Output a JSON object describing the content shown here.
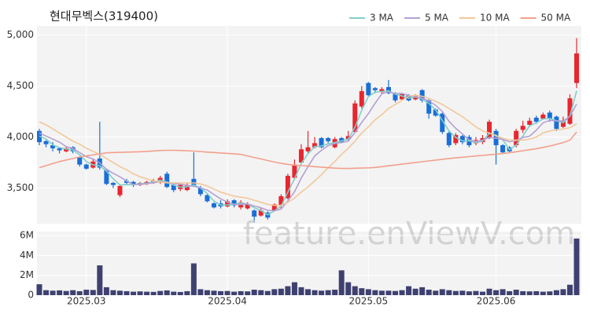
{
  "chart_data": [
    {
      "type": "candlestick",
      "title": "현대무벡스(319400)",
      "watermark": "feature.enViewV.com",
      "up_color": "#e8262f",
      "down_color": "#1a6fd6",
      "grid": true,
      "legend": "top-right",
      "ylim": [
        3150,
        5090
      ],
      "yticks": [
        {
          "value": 3500,
          "label": "3,500"
        },
        {
          "value": 4000,
          "label": "4,000"
        },
        {
          "value": 4500,
          "label": "4,500"
        },
        {
          "value": 5000,
          "label": "5,000"
        }
      ],
      "open": [
        4060,
        3960,
        3920,
        3890,
        3860,
        3900,
        3800,
        3730,
        3700,
        3790,
        3680,
        3550,
        3430,
        3570,
        3560,
        3530,
        3540,
        3550,
        3560,
        3640,
        3530,
        3490,
        3480,
        3590,
        3500,
        3430,
        3350,
        3350,
        3320,
        3380,
        3310,
        3300,
        3280,
        3230,
        3260,
        3280,
        3330,
        3400,
        3600,
        3750,
        3860,
        3900,
        3990,
        3990,
        3900,
        3990,
        3980,
        4050,
        4300,
        4530,
        4480,
        4440,
        4490,
        4430,
        4370,
        4410,
        4370,
        4460,
        4360,
        4270,
        4230,
        4040,
        3940,
        4010,
        4000,
        3940,
        3950,
        3990,
        4060,
        3920,
        3900,
        3920,
        4070,
        4120,
        4190,
        4180,
        4240,
        4200,
        4100,
        4130,
        4530
      ],
      "high": [
        4080,
        3970,
        3950,
        3900,
        3910,
        3910,
        3810,
        3740,
        3780,
        4150,
        3690,
        3560,
        3530,
        3590,
        3570,
        3560,
        3570,
        3590,
        3620,
        3660,
        3540,
        3540,
        3550,
        3850,
        3520,
        3440,
        3360,
        3380,
        3390,
        3390,
        3380,
        3360,
        3290,
        3300,
        3270,
        3350,
        3440,
        3640,
        3780,
        3930,
        4060,
        4000,
        4000,
        4000,
        4000,
        4000,
        4060,
        4360,
        4500,
        4540,
        4490,
        4490,
        4560,
        4440,
        4430,
        4420,
        4420,
        4470,
        4370,
        4280,
        4240,
        4060,
        4040,
        4020,
        4020,
        4000,
        4020,
        4170,
        4080,
        3930,
        3910,
        4080,
        4160,
        4190,
        4210,
        4240,
        4260,
        4210,
        4200,
        4420,
        4970
      ],
      "low": [
        3920,
        3900,
        3860,
        3840,
        3850,
        3840,
        3710,
        3680,
        3690,
        3680,
        3530,
        3500,
        3410,
        3530,
        3510,
        3520,
        3530,
        3540,
        3540,
        3500,
        3460,
        3470,
        3470,
        3520,
        3420,
        3360,
        3300,
        3300,
        3310,
        3310,
        3290,
        3290,
        3160,
        3220,
        3190,
        3270,
        3300,
        3390,
        3580,
        3740,
        3840,
        3890,
        3890,
        3940,
        3890,
        3940,
        3960,
        4040,
        4280,
        4400,
        4430,
        4420,
        4420,
        4340,
        4360,
        4350,
        4360,
        4340,
        4180,
        4200,
        4030,
        3900,
        3920,
        3930,
        3900,
        3920,
        3930,
        3980,
        3730,
        3840,
        3850,
        3900,
        4040,
        4100,
        4130,
        4170,
        4150,
        4060,
        4090,
        4120,
        4480
      ],
      "close": [
        3950,
        3930,
        3890,
        3870,
        3890,
        3860,
        3730,
        3690,
        3760,
        3700,
        3540,
        3530,
        3520,
        3550,
        3530,
        3550,
        3560,
        3570,
        3600,
        3510,
        3480,
        3530,
        3530,
        3530,
        3440,
        3370,
        3310,
        3320,
        3370,
        3330,
        3360,
        3340,
        3220,
        3280,
        3210,
        3340,
        3420,
        3620,
        3730,
        3880,
        3900,
        3940,
        3900,
        3960,
        3980,
        3950,
        4010,
        4330,
        4450,
        4410,
        4460,
        4470,
        4430,
        4360,
        4420,
        4360,
        4400,
        4360,
        4230,
        4210,
        4050,
        3920,
        4020,
        3950,
        3920,
        3970,
        3990,
        4150,
        3920,
        3850,
        3860,
        4060,
        4110,
        4160,
        4150,
        4220,
        4180,
        4080,
        4160,
        4380,
        4820
      ],
      "series": [
        {
          "name": "3 MA",
          "color": "#7fcfcc",
          "values": [
            4010,
            3980,
            3923,
            3897,
            3883,
            3873,
            3827,
            3760,
            3727,
            3717,
            3667,
            3590,
            3530,
            3533,
            3533,
            3543,
            3547,
            3560,
            3577,
            3560,
            3530,
            3507,
            3513,
            3530,
            3500,
            3447,
            3373,
            3333,
            3333,
            3340,
            3353,
            3343,
            3307,
            3280,
            3237,
            3277,
            3323,
            3460,
            3590,
            3743,
            3837,
            3907,
            3913,
            3933,
            3947,
            3963,
            3980,
            4097,
            4263,
            4397,
            4440,
            4447,
            4453,
            4420,
            4403,
            4380,
            4393,
            4373,
            4330,
            4267,
            4163,
            4060,
            3997,
            3963,
            3963,
            3947,
            3960,
            4037,
            4020,
            3973,
            3877,
            3923,
            4010,
            4110,
            4140,
            4177,
            4183,
            4160,
            4140,
            4207,
            4453
          ]
        },
        {
          "name": "5 MA",
          "color": "#b4a0d4",
          "values": [
            4040,
            4010,
            3980,
            3950,
            3906,
            3888,
            3848,
            3808,
            3784,
            3746,
            3684,
            3644,
            3610,
            3568,
            3534,
            3536,
            3542,
            3552,
            3562,
            3558,
            3544,
            3538,
            3526,
            3516,
            3502,
            3480,
            3436,
            3394,
            3362,
            3340,
            3338,
            3344,
            3324,
            3306,
            3282,
            3278,
            3294,
            3374,
            3464,
            3598,
            3710,
            3814,
            3870,
            3916,
            3936,
            3946,
            3960,
            4046,
            4144,
            4230,
            4332,
            4424,
            4444,
            4426,
            4428,
            4408,
            4394,
            4380,
            4354,
            4312,
            4250,
            4154,
            4086,
            4030,
            3972,
            3956,
            3970,
            3996,
            3990,
            3976,
            3954,
            3966,
            3996,
            4008,
            4068,
            4140,
            4164,
            4158,
            4158,
            4204,
            4324
          ]
        },
        {
          "name": "10 MA",
          "color": "#f3c79a",
          "values": [
            4150,
            4120,
            4080,
            4040,
            4000,
            3960,
            3930,
            3890,
            3860,
            3830,
            3790,
            3750,
            3710,
            3680,
            3640,
            3610,
            3590,
            3570,
            3560,
            3550,
            3550,
            3550,
            3550,
            3550,
            3540,
            3520,
            3490,
            3460,
            3440,
            3420,
            3410,
            3400,
            3380,
            3360,
            3340,
            3330,
            3330,
            3360,
            3400,
            3460,
            3510,
            3570,
            3630,
            3700,
            3760,
            3830,
            3890,
            3960,
            4040,
            4100,
            4170,
            4220,
            4280,
            4320,
            4360,
            4400,
            4410,
            4400,
            4380,
            4350,
            4320,
            4280,
            4240,
            4200,
            4150,
            4100,
            4060,
            4040,
            4010,
            3990,
            3970,
            3970,
            3970,
            3980,
            4000,
            4040,
            4060,
            4070,
            4080,
            4090,
            4130
          ]
        },
        {
          "name": "50 MA",
          "color": "#f2a08c",
          "values": [
            3700,
            3720,
            3740,
            3760,
            3775,
            3790,
            3805,
            3815,
            3825,
            3835,
            3845,
            3848,
            3850,
            3852,
            3854,
            3856,
            3860,
            3864,
            3868,
            3870,
            3870,
            3868,
            3866,
            3862,
            3858,
            3852,
            3848,
            3844,
            3840,
            3836,
            3830,
            3815,
            3800,
            3785,
            3770,
            3755,
            3742,
            3732,
            3725,
            3720,
            3715,
            3710,
            3705,
            3700,
            3695,
            3692,
            3692,
            3694,
            3696,
            3698,
            3702,
            3710,
            3718,
            3726,
            3734,
            3742,
            3750,
            3758,
            3766,
            3774,
            3782,
            3790,
            3796,
            3802,
            3808,
            3814,
            3820,
            3826,
            3832,
            3838,
            3846,
            3856,
            3866,
            3876,
            3886,
            3898,
            3912,
            3928,
            3946,
            3970,
            4050
          ]
        }
      ]
    },
    {
      "type": "bar",
      "color": "#3e4170",
      "grid": true,
      "ylim": [
        0,
        6400000
      ],
      "yticks": [
        0,
        {
          "value": 2000000,
          "label": "2M"
        },
        {
          "value": 4000000,
          "label": "4M"
        },
        {
          "value": 6000000,
          "label": "6M"
        }
      ],
      "categories": [
        null,
        null,
        null,
        null,
        null,
        null,
        null,
        "2025.03",
        null,
        null,
        null,
        null,
        null,
        null,
        null,
        null,
        null,
        null,
        null,
        null,
        null,
        null,
        null,
        null,
        null,
        null,
        null,
        null,
        "2025.04",
        null,
        null,
        null,
        null,
        null,
        null,
        null,
        null,
        null,
        null,
        null,
        null,
        null,
        null,
        null,
        null,
        null,
        null,
        null,
        null,
        "2025.05",
        null,
        null,
        null,
        null,
        null,
        null,
        null,
        null,
        null,
        null,
        null,
        null,
        null,
        null,
        null,
        null,
        null,
        null,
        "2025.06",
        null,
        null,
        null,
        null,
        null,
        null,
        null,
        null,
        null,
        null,
        null,
        null
      ],
      "values": [
        1100000,
        500000,
        450000,
        480000,
        420000,
        500000,
        400000,
        550000,
        520000,
        3000000,
        800000,
        500000,
        450000,
        400000,
        350000,
        380000,
        350000,
        330000,
        420000,
        480000,
        350000,
        320000,
        400000,
        3200000,
        600000,
        500000,
        450000,
        400000,
        420000,
        350000,
        400000,
        380000,
        550000,
        500000,
        420000,
        600000,
        650000,
        900000,
        1300000,
        800000,
        600000,
        500000,
        450000,
        500000,
        550000,
        2500000,
        1300000,
        900000,
        700000,
        600000,
        500000,
        450000,
        450000,
        420000,
        500000,
        900000,
        650000,
        800000,
        550000,
        450000,
        600000,
        500000,
        420000,
        450000,
        380000,
        420000,
        350000,
        650000,
        500000,
        600000,
        400000,
        550000,
        400000,
        380000,
        400000,
        350000,
        380000,
        500000,
        600000,
        1050000,
        5700000
      ]
    }
  ]
}
